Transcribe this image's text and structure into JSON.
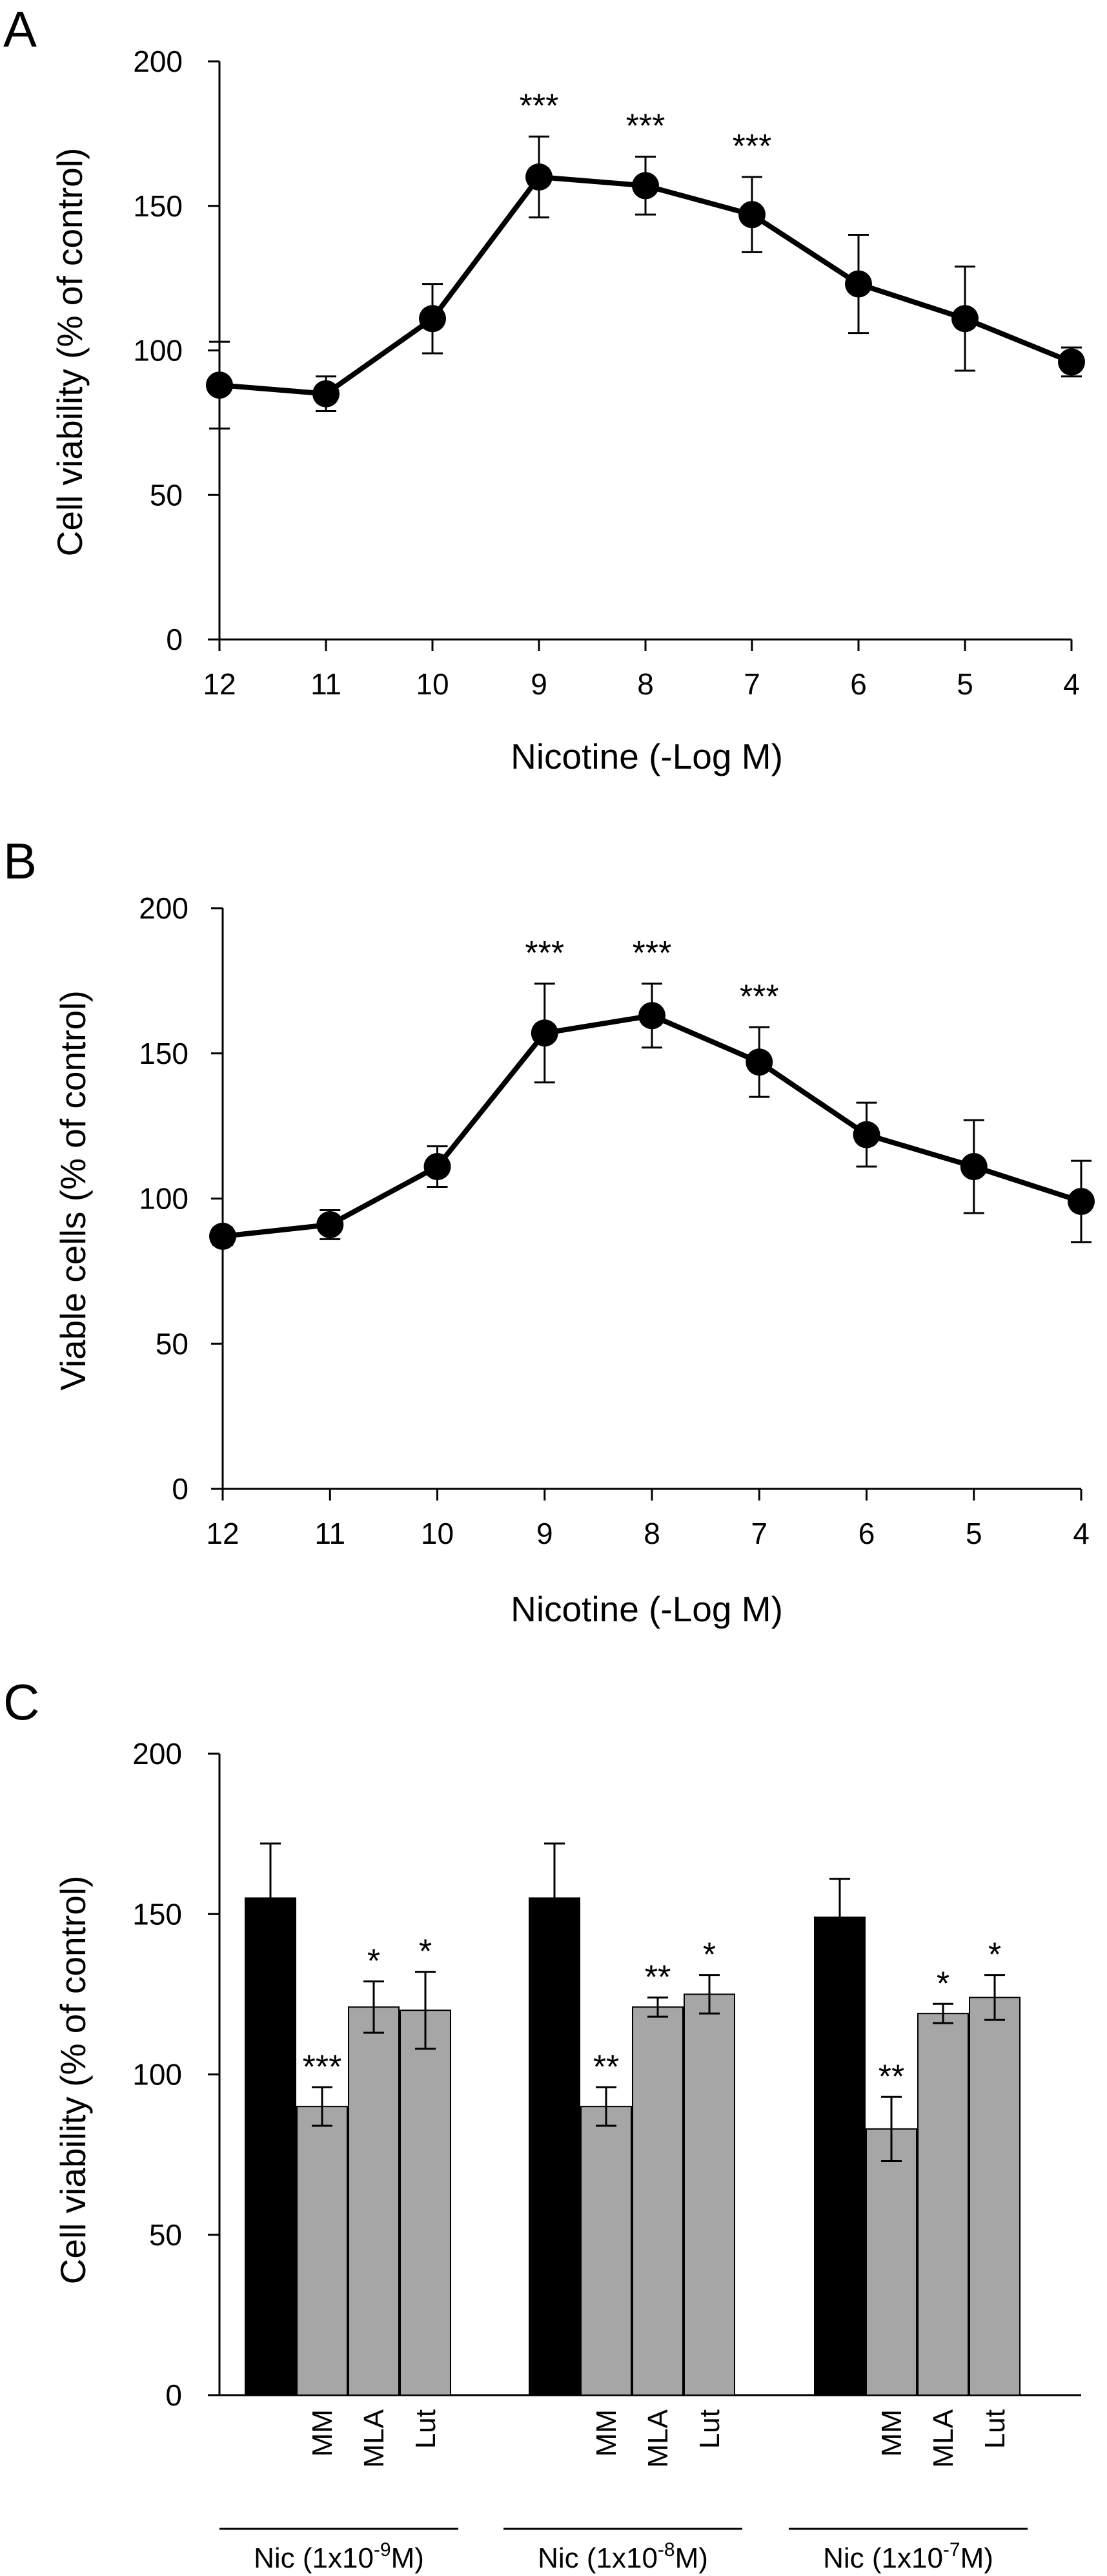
{
  "chart_data": [
    {
      "panel": "A",
      "type": "line",
      "xlabel": "Nicotine (-Log M)",
      "ylabel": "Cell viability  (% of control)",
      "x": [
        12,
        11,
        10,
        9,
        8,
        7,
        6,
        5,
        4
      ],
      "series": [
        {
          "values": [
            88,
            85,
            111,
            160,
            157,
            147,
            123,
            111,
            96
          ],
          "errors": [
            15,
            6,
            12,
            14,
            10,
            13,
            17,
            18,
            5
          ],
          "significance": [
            "",
            "",
            "",
            "***",
            "***",
            "***",
            "",
            "",
            ""
          ]
        }
      ],
      "xlim": [
        12,
        4
      ],
      "ylim": [
        0,
        200
      ],
      "yticks": [
        0,
        50,
        100,
        150,
        200
      ],
      "xticks": [
        12,
        11,
        10,
        9,
        8,
        7,
        6,
        5,
        4
      ],
      "grid": false
    },
    {
      "panel": "B",
      "type": "line",
      "xlabel": "Nicotine (-Log M)",
      "ylabel": "Viable cells (% of control)",
      "x": [
        12,
        11,
        10,
        9,
        8,
        7,
        6,
        5,
        4
      ],
      "series": [
        {
          "values": [
            87,
            91,
            111,
            157,
            163,
            147,
            122,
            111,
            99
          ],
          "errors": [
            3,
            5,
            7,
            17,
            11,
            12,
            11,
            16,
            14
          ],
          "significance": [
            "",
            "",
            "",
            "***",
            "***",
            "***",
            "",
            "",
            ""
          ]
        }
      ],
      "xlim": [
        12,
        4
      ],
      "ylim": [
        0,
        200
      ],
      "yticks": [
        0,
        50,
        100,
        150,
        200
      ],
      "xticks": [
        12,
        11,
        10,
        9,
        8,
        7,
        6,
        5,
        4
      ],
      "grid": false
    },
    {
      "panel": "C",
      "type": "bar",
      "ylabel": "Cell viability (% of control)",
      "ylim": [
        0,
        200
      ],
      "yticks": [
        0,
        50,
        100,
        150,
        200
      ],
      "grid": false,
      "groups": [
        {
          "label": "Nic (1x10",
          "exponent": "-9",
          "suffix": "M)",
          "bars": [
            {
              "label": "",
              "value": 155,
              "error": 17,
              "color": "#000000",
              "sig": ""
            },
            {
              "label": "MM",
              "value": 90,
              "error": 6,
              "color": "#a6a6a6",
              "sig": "***"
            },
            {
              "label": "MLA",
              "value": 121,
              "error": 8,
              "color": "#a6a6a6",
              "sig": "*"
            },
            {
              "label": "Lut",
              "value": 120,
              "error": 12,
              "color": "#a6a6a6",
              "sig": "*"
            }
          ]
        },
        {
          "label": "Nic (1x10",
          "exponent": "-8",
          "suffix": "M)",
          "bars": [
            {
              "label": "",
              "value": 155,
              "error": 17,
              "color": "#000000",
              "sig": ""
            },
            {
              "label": "MM",
              "value": 90,
              "error": 6,
              "color": "#a6a6a6",
              "sig": "**"
            },
            {
              "label": "MLA",
              "value": 121,
              "error": 3,
              "color": "#a6a6a6",
              "sig": "**"
            },
            {
              "label": "Lut",
              "value": 125,
              "error": 6,
              "color": "#a6a6a6",
              "sig": "*"
            }
          ]
        },
        {
          "label": "Nic (1x10",
          "exponent": "-7",
          "suffix": "M)",
          "bars": [
            {
              "label": "",
              "value": 149,
              "error": 12,
              "color": "#000000",
              "sig": ""
            },
            {
              "label": "MM",
              "value": 83,
              "error": 10,
              "color": "#a6a6a6",
              "sig": "**"
            },
            {
              "label": "MLA",
              "value": 119,
              "error": 3,
              "color": "#a6a6a6",
              "sig": "*"
            },
            {
              "label": "Lut",
              "value": 124,
              "error": 7,
              "color": "#a6a6a6",
              "sig": "*"
            }
          ]
        }
      ]
    }
  ]
}
